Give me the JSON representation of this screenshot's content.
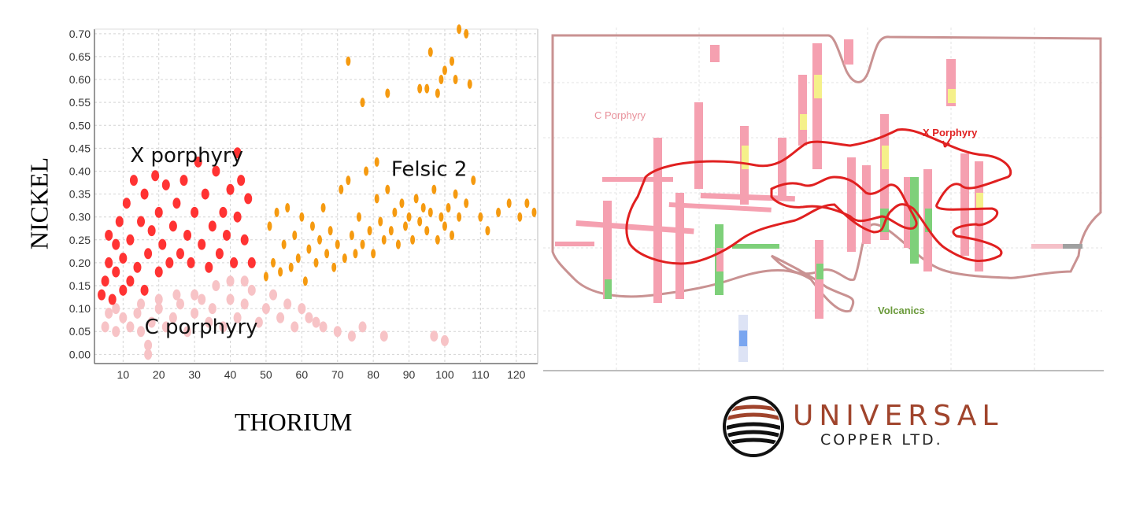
{
  "chart_data": [
    {
      "type": "scatter",
      "xlabel": "THORIUM",
      "ylabel": "NICKEL",
      "xlim": [
        2,
        126
      ],
      "ylim": [
        -0.02,
        0.71
      ],
      "xticks": [
        10,
        20,
        30,
        40,
        50,
        60,
        70,
        80,
        90,
        100,
        110,
        120
      ],
      "yticks": [
        0.0,
        0.05,
        0.1,
        0.15,
        0.2,
        0.25,
        0.3,
        0.35,
        0.4,
        0.45,
        0.5,
        0.55,
        0.6,
        0.65,
        0.7
      ],
      "grid": true,
      "annotations": [
        "X porphyry",
        "Felsic 2",
        "C porphyry"
      ],
      "series": [
        {
          "name": "C porphyry",
          "color": "#f7c3c6",
          "points": [
            [
              5,
              0.06
            ],
            [
              6,
              0.09
            ],
            [
              8,
              0.05
            ],
            [
              8,
              0.1
            ],
            [
              10,
              0.08
            ],
            [
              12,
              0.06
            ],
            [
              14,
              0.09
            ],
            [
              15,
              0.05
            ],
            [
              17,
              0.02
            ],
            [
              18,
              0.07
            ],
            [
              20,
              0.1
            ],
            [
              22,
              0.06
            ],
            [
              24,
              0.08
            ],
            [
              26,
              0.11
            ],
            [
              28,
              0.05
            ],
            [
              30,
              0.09
            ],
            [
              32,
              0.12
            ],
            [
              34,
              0.07
            ],
            [
              35,
              0.1
            ],
            [
              38,
              0.06
            ],
            [
              40,
              0.12
            ],
            [
              42,
              0.08
            ],
            [
              44,
              0.11
            ],
            [
              46,
              0.14
            ],
            [
              48,
              0.07
            ],
            [
              50,
              0.1
            ],
            [
              52,
              0.13
            ],
            [
              54,
              0.08
            ],
            [
              56,
              0.11
            ],
            [
              58,
              0.06
            ],
            [
              60,
              0.1
            ],
            [
              62,
              0.08
            ],
            [
              64,
              0.07
            ],
            [
              66,
              0.06
            ],
            [
              70,
              0.05
            ],
            [
              74,
              0.04
            ],
            [
              77,
              0.06
            ],
            [
              83,
              0.04
            ],
            [
              97,
              0.04
            ],
            [
              100,
              0.03
            ],
            [
              36,
              0.15
            ],
            [
              40,
              0.16
            ],
            [
              44,
              0.16
            ],
            [
              30,
              0.13
            ],
            [
              25,
              0.13
            ],
            [
              20,
              0.12
            ],
            [
              15,
              0.11
            ],
            [
              17,
              0.0
            ]
          ]
        },
        {
          "name": "X porphyry",
          "color": "#ff3333",
          "points": [
            [
              4,
              0.13
            ],
            [
              5,
              0.16
            ],
            [
              6,
              0.2
            ],
            [
              6,
              0.26
            ],
            [
              7,
              0.12
            ],
            [
              8,
              0.18
            ],
            [
              8,
              0.24
            ],
            [
              9,
              0.29
            ],
            [
              10,
              0.14
            ],
            [
              10,
              0.21
            ],
            [
              11,
              0.33
            ],
            [
              12,
              0.16
            ],
            [
              12,
              0.25
            ],
            [
              13,
              0.38
            ],
            [
              14,
              0.19
            ],
            [
              15,
              0.29
            ],
            [
              16,
              0.14
            ],
            [
              16,
              0.35
            ],
            [
              17,
              0.22
            ],
            [
              18,
              0.27
            ],
            [
              19,
              0.39
            ],
            [
              20,
              0.18
            ],
            [
              20,
              0.31
            ],
            [
              21,
              0.24
            ],
            [
              22,
              0.37
            ],
            [
              23,
              0.2
            ],
            [
              24,
              0.28
            ],
            [
              25,
              0.33
            ],
            [
              26,
              0.22
            ],
            [
              27,
              0.38
            ],
            [
              28,
              0.26
            ],
            [
              29,
              0.2
            ],
            [
              30,
              0.31
            ],
            [
              31,
              0.42
            ],
            [
              32,
              0.24
            ],
            [
              33,
              0.35
            ],
            [
              34,
              0.19
            ],
            [
              35,
              0.28
            ],
            [
              36,
              0.4
            ],
            [
              37,
              0.22
            ],
            [
              38,
              0.31
            ],
            [
              39,
              0.26
            ],
            [
              40,
              0.36
            ],
            [
              41,
              0.2
            ],
            [
              42,
              0.3
            ],
            [
              43,
              0.38
            ],
            [
              44,
              0.25
            ],
            [
              45,
              0.34
            ],
            [
              46,
              0.2
            ],
            [
              42,
              0.44
            ]
          ]
        },
        {
          "name": "Felsic 2",
          "color": "#f59a10",
          "points": [
            [
              50,
              0.17
            ],
            [
              51,
              0.28
            ],
            [
              52,
              0.2
            ],
            [
              53,
              0.31
            ],
            [
              54,
              0.18
            ],
            [
              55,
              0.24
            ],
            [
              56,
              0.32
            ],
            [
              57,
              0.19
            ],
            [
              58,
              0.26
            ],
            [
              59,
              0.21
            ],
            [
              60,
              0.3
            ],
            [
              61,
              0.16
            ],
            [
              62,
              0.23
            ],
            [
              63,
              0.28
            ],
            [
              64,
              0.2
            ],
            [
              65,
              0.25
            ],
            [
              66,
              0.32
            ],
            [
              67,
              0.22
            ],
            [
              68,
              0.27
            ],
            [
              69,
              0.19
            ],
            [
              70,
              0.24
            ],
            [
              71,
              0.36
            ],
            [
              72,
              0.21
            ],
            [
              73,
              0.38
            ],
            [
              74,
              0.26
            ],
            [
              75,
              0.22
            ],
            [
              76,
              0.3
            ],
            [
              77,
              0.24
            ],
            [
              78,
              0.4
            ],
            [
              79,
              0.27
            ],
            [
              80,
              0.22
            ],
            [
              81,
              0.34
            ],
            [
              82,
              0.29
            ],
            [
              83,
              0.25
            ],
            [
              84,
              0.36
            ],
            [
              85,
              0.27
            ],
            [
              86,
              0.31
            ],
            [
              87,
              0.24
            ],
            [
              88,
              0.33
            ],
            [
              89,
              0.28
            ],
            [
              90,
              0.3
            ],
            [
              91,
              0.25
            ],
            [
              92,
              0.34
            ],
            [
              93,
              0.29
            ],
            [
              94,
              0.32
            ],
            [
              95,
              0.27
            ],
            [
              96,
              0.31
            ],
            [
              97,
              0.36
            ],
            [
              98,
              0.25
            ],
            [
              99,
              0.3
            ],
            [
              100,
              0.28
            ],
            [
              101,
              0.32
            ],
            [
              102,
              0.26
            ],
            [
              103,
              0.35
            ],
            [
              104,
              0.3
            ],
            [
              106,
              0.33
            ],
            [
              108,
              0.38
            ],
            [
              110,
              0.3
            ],
            [
              112,
              0.27
            ],
            [
              115,
              0.31
            ],
            [
              118,
              0.33
            ],
            [
              121,
              0.3
            ],
            [
              123,
              0.33
            ],
            [
              125,
              0.31
            ],
            [
              73,
              0.64
            ],
            [
              77,
              0.55
            ],
            [
              84,
              0.57
            ],
            [
              93,
              0.58
            ],
            [
              95,
              0.58
            ],
            [
              96,
              0.66
            ],
            [
              98,
              0.57
            ],
            [
              99,
              0.6
            ],
            [
              100,
              0.62
            ],
            [
              102,
              0.64
            ],
            [
              103,
              0.6
            ],
            [
              104,
              0.71
            ],
            [
              106,
              0.7
            ],
            [
              107,
              0.59
            ],
            [
              81,
              0.42
            ]
          ]
        }
      ]
    },
    {
      "type": "cross-section",
      "labels": {
        "c_porphyry": "C Porphyry",
        "x_porphyry": "X Porphyry",
        "volcanics": "Volcanics"
      },
      "colors": {
        "outline": "#c89090",
        "x_outline": "#e02020",
        "drill_pink": "#f5a0b0",
        "drill_yellow": "#f5f08a",
        "drill_green": "#7ed07a",
        "drill_blue": "#7aa6f0"
      }
    }
  ],
  "logo": {
    "line1": "UNIVERSAL",
    "line2": "COPPER LTD."
  }
}
